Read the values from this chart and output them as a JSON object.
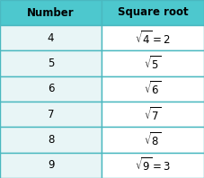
{
  "col1_header": "Number",
  "col2_header": "Square root",
  "numbers": [
    "4",
    "5",
    "6",
    "7",
    "8",
    "9"
  ],
  "sqrt_labels": [
    "$\\sqrt{4}=2$",
    "$\\sqrt{5}$",
    "$\\sqrt{6}$",
    "$\\sqrt{7}$",
    "$\\sqrt{8}$",
    "$\\sqrt{9}=3$"
  ],
  "header_bg": "#4dc8ce",
  "row_bg_light": "#e8f5f6",
  "row_bg_white": "#ffffff",
  "border_color": "#4ab8c0",
  "header_text_color": "#000000",
  "cell_text_color": "#000000",
  "header_fontsize": 8.5,
  "cell_fontsize": 8.5
}
